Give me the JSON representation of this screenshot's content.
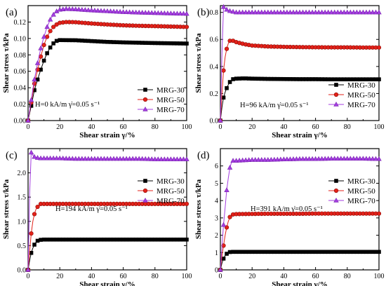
{
  "chart_data": [
    {
      "type": "line",
      "panel": "(a)",
      "xlabel": "Shear strain γ/%",
      "ylabel": "Shear stress τ/kPa",
      "xlim": [
        0,
        100
      ],
      "ylim": [
        0,
        0.14
      ],
      "xticks": [
        0,
        20,
        40,
        60,
        80,
        100
      ],
      "yticks": [
        0.0,
        0.02,
        0.04,
        0.06,
        0.08,
        0.1,
        0.12
      ],
      "ytick_labels": [
        "0.00",
        "0.02",
        "0.04",
        "0.06",
        "0.08",
        "0.10",
        "0.12"
      ],
      "annotation": "H=0 kA/m  γ̇=0.05 s⁻¹",
      "legend_position": "bottom-right",
      "series": [
        {
          "name": "MRG-30",
          "color": "#000000",
          "marker": "square",
          "points": [
            [
              0,
              0
            ],
            [
              2,
              0.018
            ],
            [
              4,
              0.037
            ],
            [
              6,
              0.05
            ],
            [
              8,
              0.062
            ],
            [
              10,
              0.073
            ],
            [
              12,
              0.082
            ],
            [
              14,
              0.089
            ],
            [
              16,
              0.094
            ],
            [
              18,
              0.097
            ],
            [
              20,
              0.098
            ],
            [
              30,
              0.0978
            ],
            [
              40,
              0.0968
            ],
            [
              50,
              0.0958
            ],
            [
              60,
              0.0952
            ],
            [
              70,
              0.0948
            ],
            [
              80,
              0.0944
            ],
            [
              90,
              0.0941
            ],
            [
              100,
              0.0938
            ]
          ]
        },
        {
          "name": "MRG-50",
          "color": "#e32119",
          "marker": "circle",
          "points": [
            [
              0,
              0
            ],
            [
              2,
              0.022
            ],
            [
              4,
              0.045
            ],
            [
              6,
              0.062
            ],
            [
              8,
              0.078
            ],
            [
              10,
              0.092
            ],
            [
              12,
              0.102
            ],
            [
              14,
              0.109
            ],
            [
              16,
              0.114
            ],
            [
              18,
              0.117
            ],
            [
              20,
              0.119
            ],
            [
              24,
              0.12
            ],
            [
              30,
              0.1198
            ],
            [
              40,
              0.1182
            ],
            [
              50,
              0.117
            ],
            [
              60,
              0.116
            ],
            [
              70,
              0.1154
            ],
            [
              80,
              0.115
            ],
            [
              90,
              0.1145
            ],
            [
              100,
              0.114
            ]
          ]
        },
        {
          "name": "MRG-70",
          "color": "#a43ee0",
          "marker": "triangle",
          "points": [
            [
              0,
              0
            ],
            [
              2,
              0.025
            ],
            [
              4,
              0.05
            ],
            [
              6,
              0.07
            ],
            [
              8,
              0.088
            ],
            [
              10,
              0.102
            ],
            [
              12,
              0.114
            ],
            [
              14,
              0.123
            ],
            [
              16,
              0.129
            ],
            [
              18,
              0.133
            ],
            [
              20,
              0.135
            ],
            [
              24,
              0.136
            ],
            [
              30,
              0.1355
            ],
            [
              40,
              0.1342
            ],
            [
              50,
              0.1332
            ],
            [
              60,
              0.1322
            ],
            [
              70,
              0.1315
            ],
            [
              80,
              0.131
            ],
            [
              90,
              0.1305
            ],
            [
              100,
              0.13
            ]
          ]
        }
      ]
    },
    {
      "type": "line",
      "panel": "(b)",
      "xlabel": "Shear strain γ/%",
      "ylabel": "Shear stress τ/kPa",
      "xlim": [
        0,
        100
      ],
      "ylim": [
        0,
        0.85
      ],
      "xticks": [
        0,
        20,
        40,
        60,
        80,
        100
      ],
      "yticks": [
        0.0,
        0.2,
        0.4,
        0.6,
        0.8
      ],
      "ytick_labels": [
        "0.0",
        "0.2",
        "0.4",
        "0.6",
        "0.8"
      ],
      "annotation": "H=96 kA/m  γ̇=0.05 s⁻¹",
      "legend_position": "bottom-right",
      "series": [
        {
          "name": "MRG-30",
          "color": "#000000",
          "marker": "square",
          "points": [
            [
              0,
              0
            ],
            [
              1,
              0.1
            ],
            [
              2,
              0.17
            ],
            [
              3,
              0.21
            ],
            [
              4,
              0.24
            ],
            [
              5,
              0.265
            ],
            [
              6,
              0.285
            ],
            [
              7,
              0.298
            ],
            [
              8,
              0.306
            ],
            [
              10,
              0.31
            ],
            [
              15,
              0.312
            ],
            [
              20,
              0.31
            ],
            [
              30,
              0.308
            ],
            [
              40,
              0.307
            ],
            [
              50,
              0.306
            ],
            [
              60,
              0.306
            ],
            [
              70,
              0.305
            ],
            [
              80,
              0.305
            ],
            [
              90,
              0.305
            ],
            [
              100,
              0.305
            ]
          ]
        },
        {
          "name": "MRG-50",
          "color": "#e32119",
          "marker": "circle",
          "points": [
            [
              0,
              0
            ],
            [
              1,
              0.2
            ],
            [
              2,
              0.37
            ],
            [
              3,
              0.47
            ],
            [
              4,
              0.53
            ],
            [
              5,
              0.57
            ],
            [
              6,
              0.59
            ],
            [
              7,
              0.595
            ],
            [
              8,
              0.59
            ],
            [
              10,
              0.58
            ],
            [
              15,
              0.565
            ],
            [
              20,
              0.555
            ],
            [
              30,
              0.548
            ],
            [
              40,
              0.545
            ],
            [
              50,
              0.543
            ],
            [
              60,
              0.542
            ],
            [
              70,
              0.541
            ],
            [
              80,
              0.541
            ],
            [
              90,
              0.54
            ],
            [
              100,
              0.54
            ]
          ]
        },
        {
          "name": "MRG-70",
          "color": "#a43ee0",
          "marker": "triangle",
          "points": [
            [
              0,
              0
            ],
            [
              1,
              0.5
            ],
            [
              2,
              0.84
            ],
            [
              3,
              0.83
            ],
            [
              4,
              0.82
            ],
            [
              6,
              0.81
            ],
            [
              8,
              0.805
            ],
            [
              10,
              0.8
            ],
            [
              20,
              0.8
            ],
            [
              30,
              0.8
            ],
            [
              40,
              0.8
            ],
            [
              50,
              0.8
            ],
            [
              60,
              0.8
            ],
            [
              70,
              0.8
            ],
            [
              80,
              0.8
            ],
            [
              90,
              0.8
            ],
            [
              100,
              0.8
            ]
          ]
        }
      ]
    },
    {
      "type": "line",
      "panel": "(c)",
      "xlabel": "Shear strain γ/%",
      "ylabel": "Shear stress τ/kPa",
      "xlim": [
        0,
        100
      ],
      "ylim": [
        0,
        2.5
      ],
      "xticks": [
        0,
        20,
        40,
        60,
        80,
        100
      ],
      "yticks": [
        0.0,
        0.5,
        1.0,
        1.5,
        2.0
      ],
      "ytick_labels": [
        "0.0",
        "0.5",
        "1.0",
        "1.5",
        "2.0"
      ],
      "annotation": "H=194 kA/m  γ̇=0.05 s⁻¹",
      "legend_position": "right",
      "series": [
        {
          "name": "MRG-30",
          "color": "#000000",
          "marker": "square",
          "points": [
            [
              0,
              0
            ],
            [
              1,
              0.2
            ],
            [
              2,
              0.35
            ],
            [
              3,
              0.45
            ],
            [
              4,
              0.52
            ],
            [
              5,
              0.57
            ],
            [
              6,
              0.6
            ],
            [
              7,
              0.615
            ],
            [
              8,
              0.62
            ],
            [
              10,
              0.625
            ],
            [
              20,
              0.625
            ],
            [
              30,
              0.625
            ],
            [
              40,
              0.625
            ],
            [
              50,
              0.625
            ],
            [
              60,
              0.625
            ],
            [
              70,
              0.625
            ],
            [
              80,
              0.625
            ],
            [
              90,
              0.625
            ],
            [
              100,
              0.625
            ]
          ]
        },
        {
          "name": "MRG-50",
          "color": "#e32119",
          "marker": "circle",
          "points": [
            [
              0,
              0
            ],
            [
              1,
              0.4
            ],
            [
              2,
              0.75
            ],
            [
              3,
              1.0
            ],
            [
              4,
              1.15
            ],
            [
              5,
              1.25
            ],
            [
              6,
              1.3
            ],
            [
              7,
              1.34
            ],
            [
              8,
              1.36
            ],
            [
              10,
              1.36
            ],
            [
              20,
              1.36
            ],
            [
              30,
              1.36
            ],
            [
              40,
              1.36
            ],
            [
              50,
              1.36
            ],
            [
              60,
              1.36
            ],
            [
              70,
              1.36
            ],
            [
              80,
              1.36
            ],
            [
              90,
              1.36
            ],
            [
              100,
              1.36
            ]
          ]
        },
        {
          "name": "MRG-70",
          "color": "#a43ee0",
          "marker": "triangle",
          "points": [
            [
              0,
              0
            ],
            [
              1,
              1.6
            ],
            [
              2,
              2.42
            ],
            [
              3,
              2.36
            ],
            [
              4,
              2.33
            ],
            [
              6,
              2.31
            ],
            [
              8,
              2.3
            ],
            [
              10,
              2.3
            ],
            [
              20,
              2.3
            ],
            [
              30,
              2.29
            ],
            [
              40,
              2.29
            ],
            [
              50,
              2.29
            ],
            [
              60,
              2.29
            ],
            [
              70,
              2.29
            ],
            [
              80,
              2.28
            ],
            [
              90,
              2.28
            ],
            [
              100,
              2.28
            ]
          ]
        }
      ]
    },
    {
      "type": "line",
      "panel": "(d)",
      "xlabel": "Shear strain γ/%",
      "ylabel": "Shear stress τ/kPa",
      "xlim": [
        0,
        100
      ],
      "ylim": [
        0,
        7
      ],
      "xticks": [
        0,
        20,
        40,
        60,
        80,
        100
      ],
      "yticks": [
        0,
        1,
        2,
        3,
        4,
        5,
        6
      ],
      "ytick_labels": [
        "0",
        "1",
        "2",
        "3",
        "4",
        "5",
        "6"
      ],
      "annotation": "H=391 kA/m  γ̇=0.05 s⁻¹",
      "legend_position": "right",
      "series": [
        {
          "name": "MRG-30",
          "color": "#000000",
          "marker": "square",
          "points": [
            [
              0,
              0
            ],
            [
              1,
              0.4
            ],
            [
              2,
              0.65
            ],
            [
              3,
              0.82
            ],
            [
              4,
              0.93
            ],
            [
              5,
              1.0
            ],
            [
              6,
              1.03
            ],
            [
              8,
              1.04
            ],
            [
              10,
              1.04
            ],
            [
              20,
              1.04
            ],
            [
              30,
              1.04
            ],
            [
              40,
              1.04
            ],
            [
              50,
              1.04
            ],
            [
              60,
              1.04
            ],
            [
              70,
              1.04
            ],
            [
              80,
              1.04
            ],
            [
              90,
              1.04
            ],
            [
              100,
              1.04
            ]
          ]
        },
        {
          "name": "MRG-50",
          "color": "#e32119",
          "marker": "circle",
          "points": [
            [
              0,
              0
            ],
            [
              1,
              0.8
            ],
            [
              2,
              1.4
            ],
            [
              3,
              2.0
            ],
            [
              4,
              2.45
            ],
            [
              5,
              2.8
            ],
            [
              6,
              3.05
            ],
            [
              7,
              3.15
            ],
            [
              8,
              3.2
            ],
            [
              10,
              3.22
            ],
            [
              20,
              3.23
            ],
            [
              30,
              3.24
            ],
            [
              40,
              3.24
            ],
            [
              50,
              3.24
            ],
            [
              60,
              3.25
            ],
            [
              70,
              3.25
            ],
            [
              80,
              3.25
            ],
            [
              90,
              3.25
            ],
            [
              100,
              3.25
            ]
          ]
        },
        {
          "name": "MRG-70",
          "color": "#a43ee0",
          "marker": "triangle",
          "points": [
            [
              0,
              0
            ],
            [
              1,
              1.4
            ],
            [
              2,
              2.6
            ],
            [
              3,
              3.6
            ],
            [
              4,
              4.6
            ],
            [
              5,
              5.3
            ],
            [
              6,
              5.9
            ],
            [
              7,
              6.2
            ],
            [
              8,
              6.3
            ],
            [
              10,
              6.3
            ],
            [
              20,
              6.35
            ],
            [
              30,
              6.35
            ],
            [
              40,
              6.38
            ],
            [
              50,
              6.4
            ],
            [
              60,
              6.4
            ],
            [
              70,
              6.42
            ],
            [
              80,
              6.42
            ],
            [
              90,
              6.42
            ],
            [
              100,
              6.4
            ]
          ]
        }
      ]
    }
  ]
}
